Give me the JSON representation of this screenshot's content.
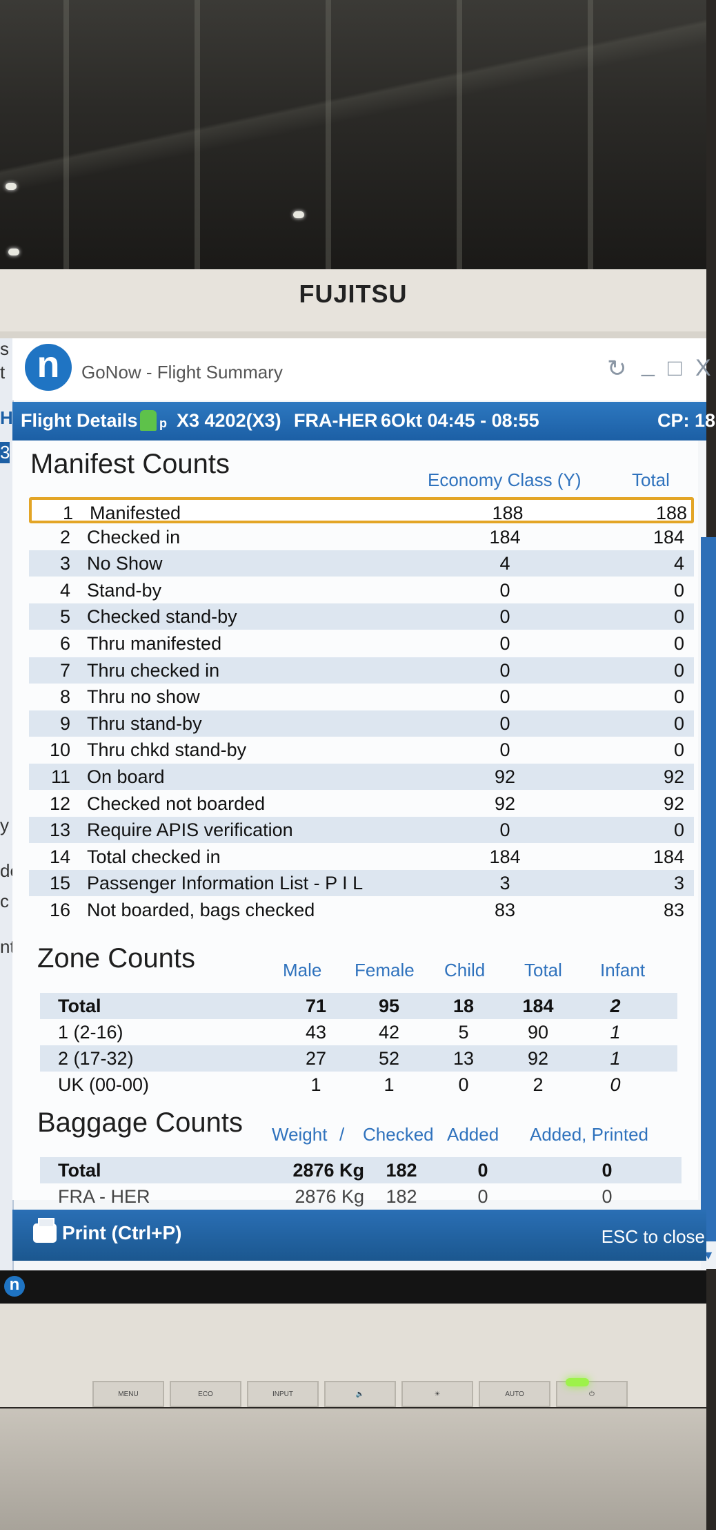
{
  "monitor": {
    "brand": "FUJITSU",
    "buttons": [
      "MENU",
      "ECO",
      "INPUT",
      "🔈",
      "☀",
      "AUTO",
      "⏻"
    ]
  },
  "window": {
    "app_logo": "n",
    "title": "GoNow - Flight Summary",
    "controls": {
      "refresh": "↻",
      "minimize": "_",
      "maximize": "□",
      "close": "X"
    }
  },
  "left_strip": [
    "s",
    "t",
    "H",
    "3",
    "y",
    "de",
    "c",
    "nt"
  ],
  "header": {
    "label": "Flight Details |",
    "flight_icon_suffix": "p",
    "flight": "X3 4202(X3)",
    "route": "FRA-HER",
    "date_time": "6Okt 04:45 - 08:55",
    "cp": "CP: 18"
  },
  "manifest": {
    "title": "Manifest Counts",
    "col_economy": "Economy Class (Y)",
    "col_total": "Total",
    "rows": [
      {
        "n": "1",
        "label": "Manifested",
        "economy": "188",
        "total": "188"
      },
      {
        "n": "2",
        "label": "Checked in",
        "economy": "184",
        "total": "184"
      },
      {
        "n": "3",
        "label": "No Show",
        "economy": "4",
        "total": "4"
      },
      {
        "n": "4",
        "label": "Stand-by",
        "economy": "0",
        "total": "0"
      },
      {
        "n": "5",
        "label": "Checked stand-by",
        "economy": "0",
        "total": "0"
      },
      {
        "n": "6",
        "label": "Thru manifested",
        "economy": "0",
        "total": "0"
      },
      {
        "n": "7",
        "label": "Thru checked in",
        "economy": "0",
        "total": "0"
      },
      {
        "n": "8",
        "label": "Thru no show",
        "economy": "0",
        "total": "0"
      },
      {
        "n": "9",
        "label": "Thru stand-by",
        "economy": "0",
        "total": "0"
      },
      {
        "n": "10",
        "label": "Thru chkd stand-by",
        "economy": "0",
        "total": "0"
      },
      {
        "n": "11",
        "label": "On board",
        "economy": "92",
        "total": "92"
      },
      {
        "n": "12",
        "label": "Checked not boarded",
        "economy": "92",
        "total": "92"
      },
      {
        "n": "13",
        "label": "Require APIS verification",
        "economy": "0",
        "total": "0"
      },
      {
        "n": "14",
        "label": "Total checked in",
        "economy": "184",
        "total": "184"
      },
      {
        "n": "15",
        "label": "Passenger Information List - P I L",
        "economy": "3",
        "total": "3"
      },
      {
        "n": "16",
        "label": "Not boarded, bags checked",
        "economy": "83",
        "total": "83"
      }
    ]
  },
  "zone": {
    "title": "Zone Counts",
    "cols": [
      "Male",
      "Female",
      "Child",
      "Total",
      "Infant"
    ],
    "rows": [
      {
        "label": "Total",
        "male": "71",
        "female": "95",
        "child": "18",
        "total": "184",
        "infant": "2"
      },
      {
        "label": "1 (2-16)",
        "male": "43",
        "female": "42",
        "child": "5",
        "total": "90",
        "infant": "1"
      },
      {
        "label": "2 (17-32)",
        "male": "27",
        "female": "52",
        "child": "13",
        "total": "92",
        "infant": "1"
      },
      {
        "label": "UK (00-00)",
        "male": "1",
        "female": "1",
        "child": "0",
        "total": "2",
        "infant": "0"
      }
    ]
  },
  "baggage": {
    "title": "Baggage Counts",
    "col_weight": "Weight",
    "col_sep": "/",
    "col_checked": "Checked",
    "col_added": "Added",
    "col_added_printed": "Added, Printed",
    "rows": [
      {
        "label": "Total",
        "weight": "2876 Kg",
        "checked": "182",
        "added": "0",
        "added_printed": "0"
      },
      {
        "label": "FRA - HER",
        "weight": "2876 Kg",
        "checked": "182",
        "added": "0",
        "added_printed": "0"
      }
    ]
  },
  "footer": {
    "print_label": "Print (Ctrl+P)",
    "esc_label": "ESC to close"
  },
  "taskbar": {
    "app_logo": "n"
  }
}
